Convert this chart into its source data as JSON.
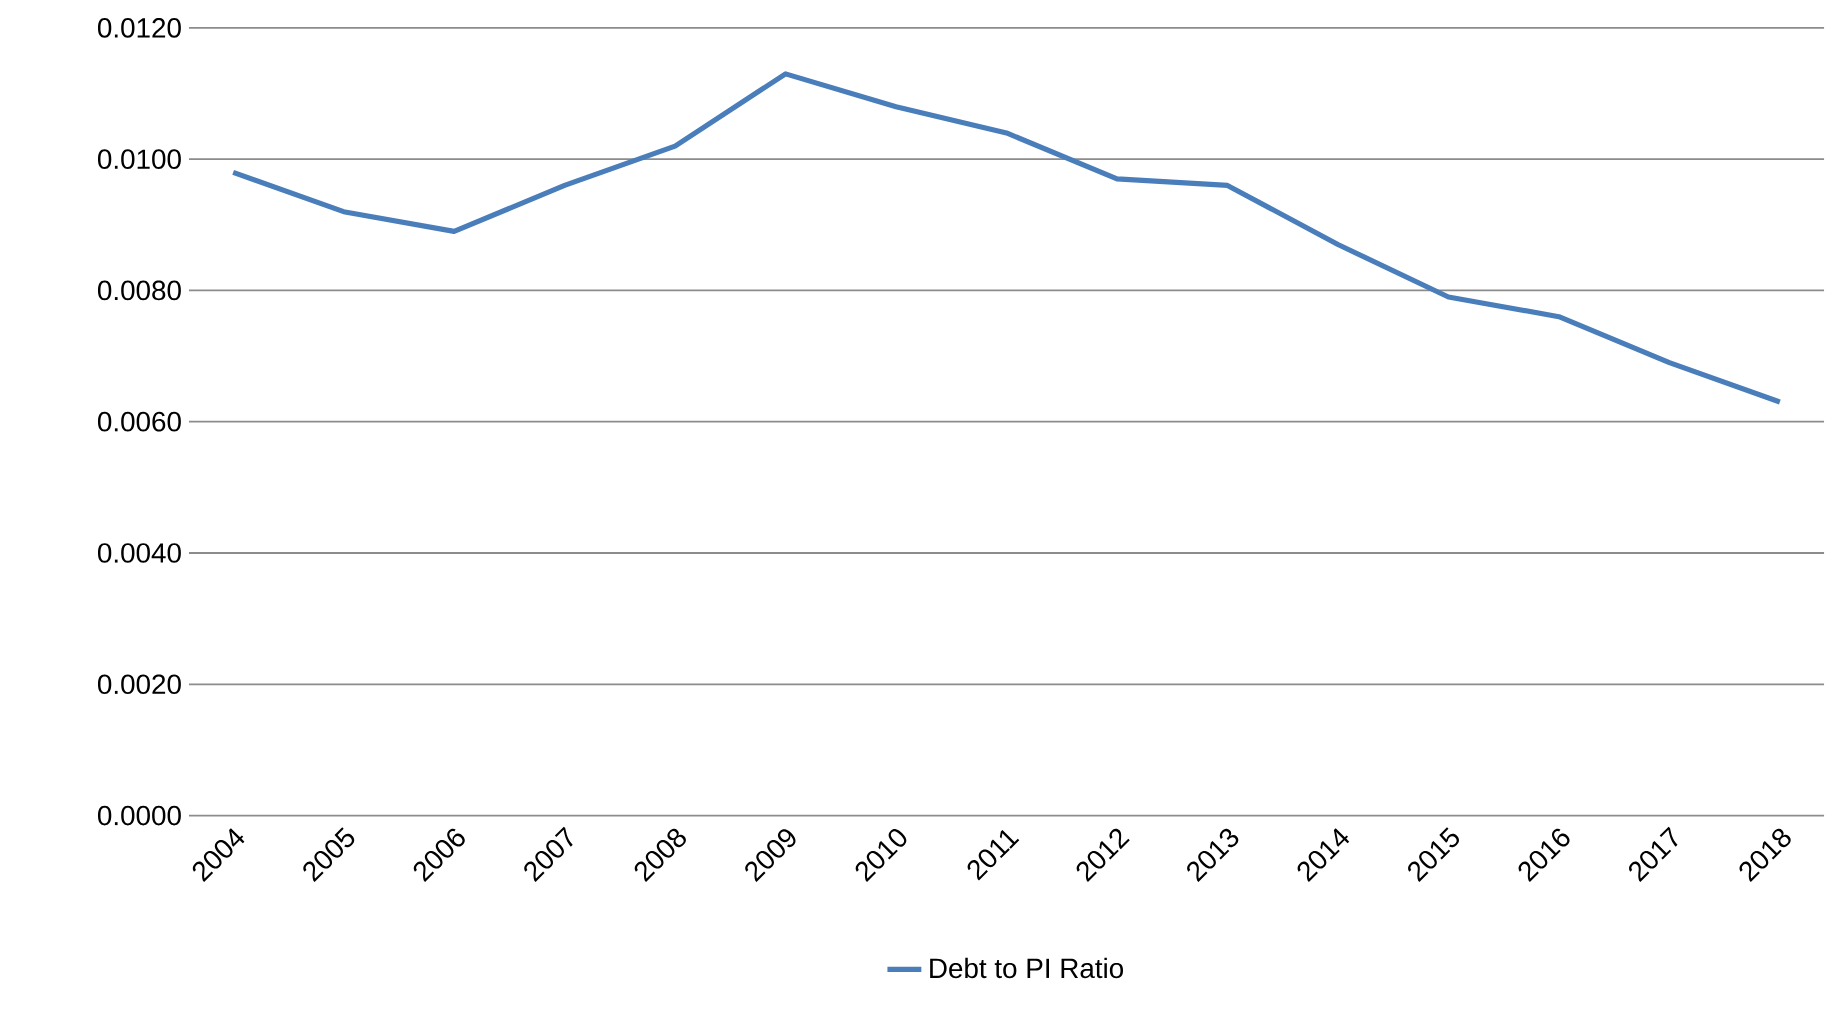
{
  "chart_data": {
    "type": "line",
    "categories": [
      "2004",
      "2005",
      "2006",
      "2007",
      "2008",
      "2009",
      "2010",
      "2011",
      "2012",
      "2013",
      "2014",
      "2015",
      "2016",
      "2017",
      "2018"
    ],
    "series": [
      {
        "name": "Debt to PI Ratio",
        "color": "#4a7ebb",
        "values": [
          0.0098,
          0.0092,
          0.0089,
          0.0096,
          0.0102,
          0.0113,
          0.0108,
          0.0104,
          0.0097,
          0.0096,
          0.0087,
          0.0079,
          0.0076,
          0.0069,
          0.0063
        ]
      }
    ],
    "ylim": [
      0,
      0.012
    ],
    "yticks": [
      {
        "value": 0,
        "label": "0.0000"
      },
      {
        "value": 0.002,
        "label": "0.0020"
      },
      {
        "value": 0.004,
        "label": "0.0040"
      },
      {
        "value": 0.006,
        "label": "0.0060"
      },
      {
        "value": 0.008,
        "label": "0.0080"
      },
      {
        "value": 0.01,
        "label": "0.0100"
      },
      {
        "value": 0.012,
        "label": "0.0120"
      }
    ],
    "grid": "y",
    "legend": "bottom",
    "marker": "none",
    "line_style": "solid"
  }
}
